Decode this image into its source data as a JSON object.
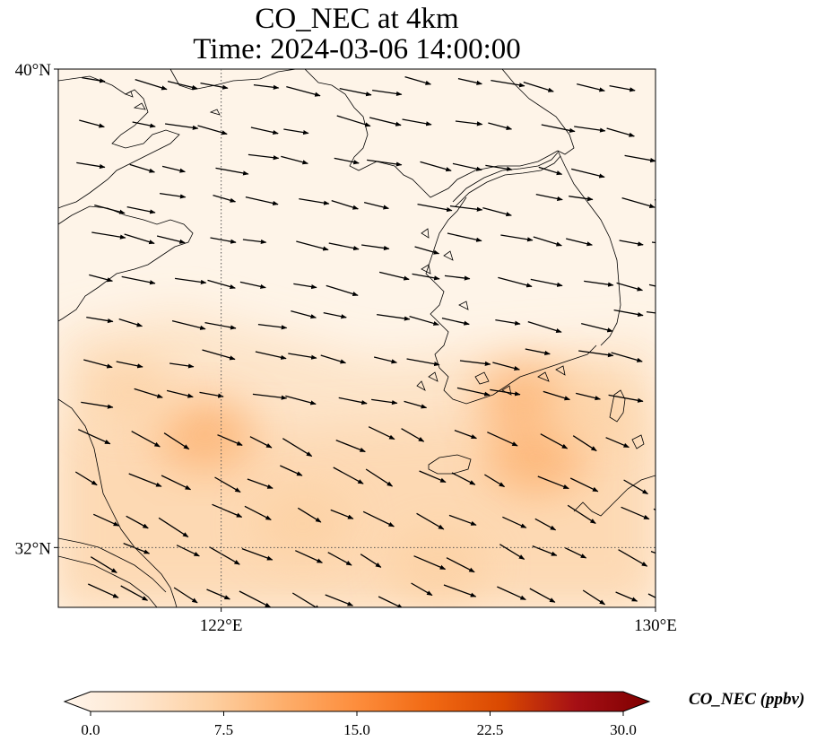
{
  "title": {
    "line1": "CO_NEC at 4km",
    "line2": "Time: 2024-03-06 14:00:00"
  },
  "map": {
    "extent": {
      "lon_min": 119,
      "lon_max": 130,
      "lat_min": 31,
      "lat_max": 40
    },
    "lat_ticks": [
      {
        "value": 40,
        "label": "40°N"
      },
      {
        "value": 32,
        "label": "32°N"
      }
    ],
    "lon_ticks": [
      {
        "value": 122,
        "label": "122°E"
      },
      {
        "value": 130,
        "label": "130°E"
      }
    ],
    "gridlines": {
      "lats": [
        32
      ],
      "lons": [
        122
      ],
      "style": "dotted"
    },
    "field_hotspots_ppbv": [
      {
        "lon": 121.7,
        "lat": 33.9,
        "value": 10.5
      },
      {
        "lon": 127.8,
        "lat": 33.5,
        "value": 10.0
      },
      {
        "lon": 127.6,
        "lat": 34.5,
        "value": 11.5
      },
      {
        "lon": 128.9,
        "lat": 34.3,
        "value": 9.0
      },
      {
        "lon": 123.5,
        "lat": 32.4,
        "value": 8.0
      },
      {
        "lon": 120.3,
        "lat": 34.6,
        "value": 6.5
      },
      {
        "lon": 126.0,
        "lat": 31.7,
        "value": 6.0
      }
    ],
    "wind_grid": {
      "lon_start": 119.5,
      "lon_step": 0.75,
      "lat_start": 31.3,
      "lat_step": 0.65
    }
  },
  "colorbar": {
    "label": "CO_NEC (ppbv)",
    "min": 0,
    "max": 30,
    "extend": "both",
    "colormap": [
      "#fff5eb",
      "#fee6ce",
      "#fdd0a2",
      "#fdae6b",
      "#fd8d3c",
      "#f16913",
      "#d94801",
      "#a50f15",
      "#7f0000"
    ],
    "ticks": [
      {
        "value": 0,
        "label": "0.0"
      },
      {
        "value": 7.5,
        "label": "7.5"
      },
      {
        "value": 15,
        "label": "15.0"
      },
      {
        "value": 22.5,
        "label": "22.5"
      },
      {
        "value": 30,
        "label": "30.0"
      }
    ]
  }
}
